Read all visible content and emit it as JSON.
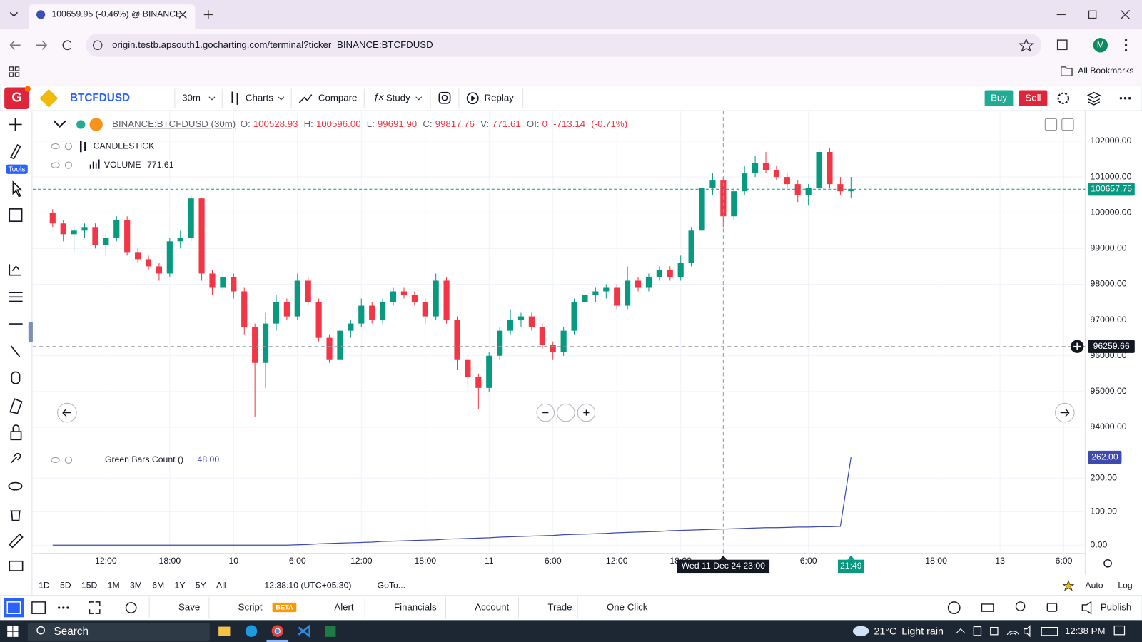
{
  "browser": {
    "tab_title": "100659.95 (-0.46%) @ BINANCE",
    "url": "origin.testb.apsouth1.gocharting.com/terminal?ticker=BINANCE:BTCFDUSD",
    "bookmarks": "All Bookmarks",
    "profile": "M"
  },
  "app_toolbar": {
    "logo": "G",
    "symbol": "BTCFDUSD",
    "interval": "30m",
    "charts": "Charts",
    "compare": "Compare",
    "study": "Study",
    "replay": "Replay",
    "buy": "Buy",
    "sell": "Sell"
  },
  "left_toolbar": {
    "tools_label": "Tools"
  },
  "chart_header": {
    "symbol": "BINANCE:BTCFDUSD (30m)",
    "o_label": "O:",
    "open": "100528.93",
    "h_label": "H:",
    "high": "100596.00",
    "l_label": "L:",
    "low": "99691.90",
    "c_label": "C:",
    "close": "99817.76",
    "v_label": "V:",
    "volume": "771.61",
    "oi_label": "OI:",
    "oi": "0",
    "change": "-713.14",
    "change_pct": "(-0.71%)"
  },
  "legend": {
    "candlestick": "CANDLESTICK",
    "volume": "VOLUME",
    "volume_value": "771.61"
  },
  "chart_data": [
    {
      "type": "candlestick",
      "up_color": "#089981",
      "down_color": "#f23645",
      "grid": true,
      "open": [
        100000,
        99700,
        99400,
        99500,
        99600,
        99100,
        99300,
        99800,
        98900,
        98700,
        98500,
        98300,
        99200,
        99300,
        100400,
        98300,
        97900,
        98200,
        97800,
        96800,
        95800,
        96900,
        97500,
        97100,
        98100,
        97500,
        96500,
        95900,
        96700,
        96900,
        97400,
        97000,
        97500,
        97800,
        97700,
        97500,
        97100,
        98100,
        97000,
        95900,
        95400,
        95100,
        96000,
        96700,
        97000,
        97100,
        96800,
        96300,
        96100,
        96700,
        97500,
        97700,
        97800,
        97900,
        97400,
        98100,
        97900,
        98200,
        98400,
        98200,
        98600,
        99500,
        100700,
        100900,
        99900,
        100600,
        101100,
        101400,
        101200,
        101000,
        100800,
        100500,
        100700,
        101700,
        100800,
        100600
      ],
      "high": [
        100100,
        99800,
        99600,
        99700,
        99700,
        99400,
        99900,
        99900,
        99000,
        98800,
        98600,
        99300,
        99500,
        100500,
        100400,
        98400,
        98400,
        98300,
        97900,
        96900,
        97200,
        97700,
        97600,
        98300,
        98200,
        97600,
        96600,
        96800,
        97000,
        97600,
        97500,
        97600,
        97900,
        97900,
        97800,
        97600,
        98300,
        98200,
        97100,
        96000,
        95500,
        96100,
        96800,
        97300,
        97200,
        97200,
        96900,
        96400,
        96800,
        97600,
        97800,
        97900,
        98000,
        98000,
        98500,
        98200,
        98300,
        98500,
        98500,
        98800,
        99600,
        100900,
        101100,
        101000,
        100700,
        101300,
        101600,
        101700,
        101300,
        101100,
        100900,
        100800,
        101800,
        101800,
        101000,
        101000
      ],
      "low": [
        99600,
        99200,
        98900,
        99300,
        99000,
        98800,
        99200,
        98800,
        98600,
        98400,
        98100,
        98200,
        99000,
        99200,
        98100,
        97700,
        97800,
        97600,
        96600,
        94300,
        95100,
        96700,
        97000,
        97000,
        97400,
        96400,
        95800,
        95800,
        96500,
        96800,
        96900,
        96900,
        97400,
        97600,
        97400,
        96900,
        97000,
        96900,
        95600,
        95100,
        94500,
        95000,
        95900,
        96600,
        96800,
        96700,
        96200,
        95900,
        96000,
        96600,
        97400,
        97500,
        97600,
        97300,
        97300,
        97800,
        97800,
        98100,
        98100,
        98100,
        98500,
        99400,
        100500,
        99600,
        99800,
        100500,
        101000,
        101100,
        100900,
        100700,
        100300,
        100200,
        100600,
        100700,
        100500,
        100400
      ],
      "close": [
        99700,
        99400,
        99500,
        99600,
        99100,
        99300,
        99800,
        98900,
        98700,
        98500,
        98300,
        99200,
        99300,
        100400,
        98300,
        97900,
        98200,
        97800,
        96800,
        95800,
        96900,
        97500,
        97100,
        98100,
        97500,
        96500,
        95900,
        96700,
        96900,
        97400,
        97000,
        97500,
        97800,
        97700,
        97500,
        97100,
        98100,
        97000,
        95900,
        95400,
        95100,
        96000,
        96700,
        97000,
        97100,
        96800,
        96300,
        96100,
        96700,
        97500,
        97700,
        97800,
        97900,
        97400,
        98100,
        97900,
        98200,
        98400,
        98200,
        98600,
        99500,
        100700,
        100900,
        99900,
        100600,
        101100,
        101400,
        101200,
        101000,
        100800,
        100500,
        100700,
        101700,
        100800,
        100600,
        100660
      ],
      "xlim": [
        -0.5,
        97
      ],
      "xticks": [
        {
          "value": 5,
          "label": "12:00"
        },
        {
          "value": 11,
          "label": "18:00"
        },
        {
          "value": 17,
          "label": "10"
        },
        {
          "value": 23,
          "label": "6:00"
        },
        {
          "value": 29,
          "label": "12:00"
        },
        {
          "value": 35,
          "label": "18:00"
        },
        {
          "value": 41,
          "label": "11"
        },
        {
          "value": 47,
          "label": "6:00"
        },
        {
          "value": 53,
          "label": "12:00"
        },
        {
          "value": 59,
          "label": "18:00"
        },
        {
          "value": 71,
          "label": "6:00"
        },
        {
          "value": 83,
          "label": "18:00"
        },
        {
          "value": 89,
          "label": "13"
        },
        {
          "value": 95,
          "label": "6:00"
        }
      ],
      "ylim": [
        93532,
        102794
      ],
      "yticks": [
        {
          "value": 94000,
          "label": "94000.00"
        },
        {
          "value": 95000,
          "label": "95000.00"
        },
        {
          "value": 96000,
          "label": "96000.00"
        },
        {
          "value": 97000,
          "label": "97000.00"
        },
        {
          "value": 98000,
          "label": "98000.00"
        },
        {
          "value": 99000,
          "label": "99000.00"
        },
        {
          "value": 100000,
          "label": "100000.00"
        },
        {
          "value": 101000,
          "label": "101000.00"
        },
        {
          "value": 102000,
          "label": "102000.00"
        }
      ],
      "last_price": 100657.75,
      "crosshair": {
        "x": 63,
        "price": 96259.66,
        "time_label": "Wed 11 Dec 24 23:00"
      },
      "current_time_label": "21:49"
    },
    {
      "type": "line",
      "name": "Green Bars Count ()",
      "legend_value": "48.00",
      "color": "#3f4ab0",
      "values": [
        0,
        0,
        0,
        0,
        0,
        0,
        0,
        0,
        0,
        0,
        0,
        0,
        0,
        0,
        0,
        0,
        0,
        0,
        0,
        0,
        0,
        0,
        0,
        1,
        2,
        4,
        5,
        6,
        7,
        8,
        9,
        11,
        12,
        13,
        14,
        15,
        16,
        18,
        19,
        20,
        21,
        22,
        24,
        25,
        26,
        27,
        28,
        29,
        31,
        32,
        33,
        34,
        35,
        37,
        38,
        39,
        40,
        41,
        43,
        44,
        45,
        46,
        47,
        48,
        49,
        50,
        51,
        52,
        52,
        53,
        54,
        54,
        55,
        55,
        56,
        262
      ],
      "ylim": [
        -24,
        280
      ],
      "yticks": [
        {
          "value": 0,
          "label": "0.00"
        },
        {
          "value": 100,
          "label": "100.00"
        },
        {
          "value": 200,
          "label": "200.00"
        }
      ],
      "last_value": {
        "value": 262,
        "label": "262.00"
      }
    }
  ],
  "range_bar": {
    "ranges": [
      "1D",
      "5D",
      "15D",
      "1M",
      "3M",
      "6M",
      "1Y",
      "5Y",
      "All"
    ],
    "clock": "12:38:10 (UTC+05:30)",
    "goto": "GoTo...",
    "auto": "Auto",
    "log": "Log"
  },
  "bottom_toolbar": {
    "save": "Save",
    "script": "Script",
    "beta": "BETA",
    "alert": "Alert",
    "financials": "Financials",
    "account": "Account",
    "trade": "Trade",
    "one_click": "One Click",
    "publish": "Publish"
  },
  "taskbar": {
    "search": "Search",
    "temperature": "21°C",
    "weather": "Light rain",
    "time": "12:38 PM"
  }
}
